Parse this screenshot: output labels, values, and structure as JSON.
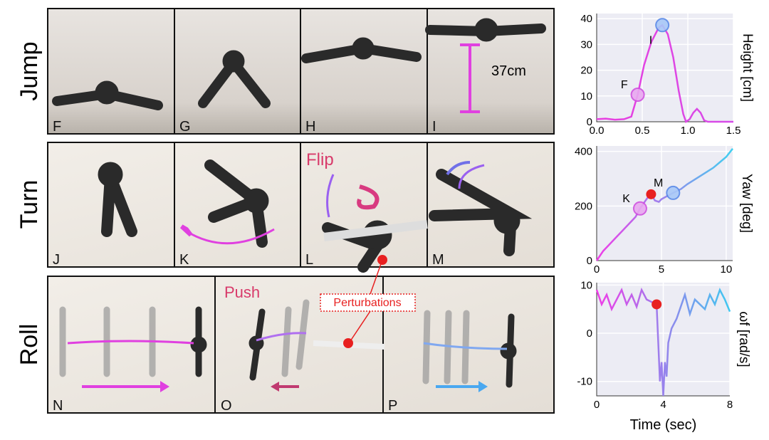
{
  "rows": [
    {
      "label": "Jump"
    },
    {
      "label": "Turn"
    },
    {
      "label": "Roll"
    }
  ],
  "panels": [
    "F",
    "G",
    "H",
    "I",
    "J",
    "K",
    "L",
    "M",
    "N",
    "O",
    "P"
  ],
  "annotations": {
    "height_marker": "37cm",
    "flip": "Flip",
    "push": "Push",
    "perturbations": "Perturbations"
  },
  "chart_data": [
    {
      "type": "line",
      "y_label": "Height [cm]",
      "xlim": [
        0,
        1.5
      ],
      "ylim": [
        0,
        42
      ],
      "xticks": [
        {
          "value": 0,
          "label": "0.0"
        },
        0.5,
        {
          "value": 1,
          "label": "1.0"
        },
        1.5
      ],
      "yticks": [
        0,
        10,
        20,
        30,
        40
      ],
      "grid": true,
      "series": [
        {
          "color": "#e040e0",
          "gradient": [
            "#e83ee0",
            "#d64ce8"
          ],
          "x": [
            0,
            0.1,
            0.2,
            0.3,
            0.38,
            0.45,
            0.52,
            0.6,
            0.68,
            0.72,
            0.78,
            0.84,
            0.9,
            0.95,
            0.98,
            1.02,
            1.06,
            1.1,
            1.14,
            1.18,
            1.22,
            1.3,
            1.4,
            1.5
          ],
          "values": [
            1,
            1.2,
            0.8,
            1,
            2,
            10.5,
            22,
            31,
            36.5,
            37.5,
            34,
            25,
            12,
            3,
            0,
            1,
            3.5,
            5,
            3.5,
            0.5,
            0,
            0,
            0,
            0
          ]
        }
      ],
      "markers": [
        {
          "label": "F",
          "x": 0.45,
          "y": 10.5
        },
        {
          "label": "I",
          "x": 0.72,
          "y": 37.5
        }
      ]
    },
    {
      "type": "line",
      "y_label": "Yaw [deg]",
      "xlim": [
        0,
        10.5
      ],
      "ylim": [
        0,
        420
      ],
      "xticks": [
        0,
        5,
        10
      ],
      "yticks": [
        0,
        200,
        400
      ],
      "grid": true,
      "series": [
        {
          "color": "#c060f0",
          "gradient": [
            "#f03ce8",
            "#40d0f0"
          ],
          "x": [
            0,
            0.5,
            1,
            1.5,
            2,
            2.5,
            3,
            3.35,
            3.7,
            4,
            4.2,
            4.5,
            4.8,
            5,
            5.5,
            5.9,
            6.5,
            7,
            7.5,
            8,
            8.5,
            9,
            9.5,
            10,
            10.5
          ],
          "values": [
            0,
            35,
            60,
            85,
            110,
            135,
            160,
            191,
            215,
            235,
            243,
            220,
            215,
            225,
            238,
            248,
            262,
            280,
            295,
            310,
            325,
            340,
            360,
            380,
            410
          ]
        }
      ],
      "markers": [
        {
          "label": "K",
          "x": 3.35,
          "y": 191
        },
        {
          "label": "M",
          "x": 5.9,
          "y": 248
        }
      ],
      "events": [
        {
          "x": 4.2,
          "y": 243
        }
      ]
    },
    {
      "type": "line",
      "y_label": "ωf [rad/s]",
      "x_label": "Time (sec)",
      "xlim": [
        0,
        8
      ],
      "ylim": [
        -13,
        10.5
      ],
      "xticks": [
        0,
        4,
        8
      ],
      "yticks": [
        -10,
        0,
        10
      ],
      "grid": true,
      "series": [
        {
          "color": "#a060f0",
          "gradient": [
            "#f03ce8",
            "#40c8f0"
          ],
          "x": [
            0,
            0.3,
            0.6,
            0.9,
            1.2,
            1.5,
            1.8,
            2.1,
            2.4,
            2.7,
            3,
            3.3,
            3.6,
            3.7,
            3.8,
            3.9,
            4,
            4.1,
            4.2,
            4.3,
            4.5,
            4.8,
            5,
            5.3,
            5.6,
            5.9,
            6.2,
            6.5,
            6.8,
            7.1,
            7.4,
            7.7,
            8
          ],
          "values": [
            9,
            6,
            8,
            5,
            7,
            9,
            6,
            8,
            5.5,
            9,
            7,
            6.5,
            6,
            -2,
            -10,
            -6,
            -13,
            -6,
            -9,
            -2,
            1,
            3,
            5,
            8,
            4,
            7,
            6,
            5,
            8,
            6,
            9,
            7,
            4.5
          ]
        }
      ],
      "events": [
        {
          "x": 3.6,
          "y": 6
        }
      ]
    }
  ]
}
